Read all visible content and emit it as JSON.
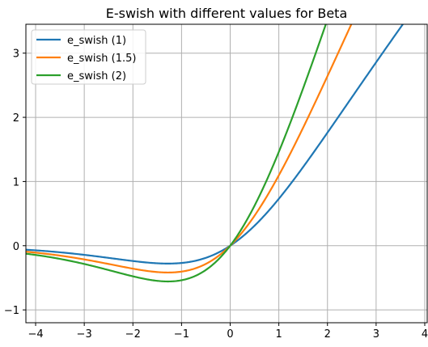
{
  "chart_data": {
    "type": "line",
    "title": "E-swish with different values for Beta",
    "xlabel": "",
    "ylabel": "",
    "xlim": [
      -4.2,
      4.05
    ],
    "ylim": [
      -1.2,
      3.45
    ],
    "xticks": [
      -4,
      -3,
      -2,
      -1,
      0,
      1,
      2,
      3,
      4
    ],
    "yticks": [
      -1,
      0,
      1,
      2,
      3
    ],
    "grid": true,
    "legend": "top-left",
    "x_range": [
      -4.2,
      4.05
    ],
    "series": [
      {
        "name": "e_swish (1)",
        "beta": 1,
        "color": "#1f77b4"
      },
      {
        "name": "e_swish (1.5)",
        "beta": 1.5,
        "color": "#ff7f0e"
      },
      {
        "name": "e_swish (2)",
        "beta": 2,
        "color": "#2ca02c"
      }
    ]
  }
}
